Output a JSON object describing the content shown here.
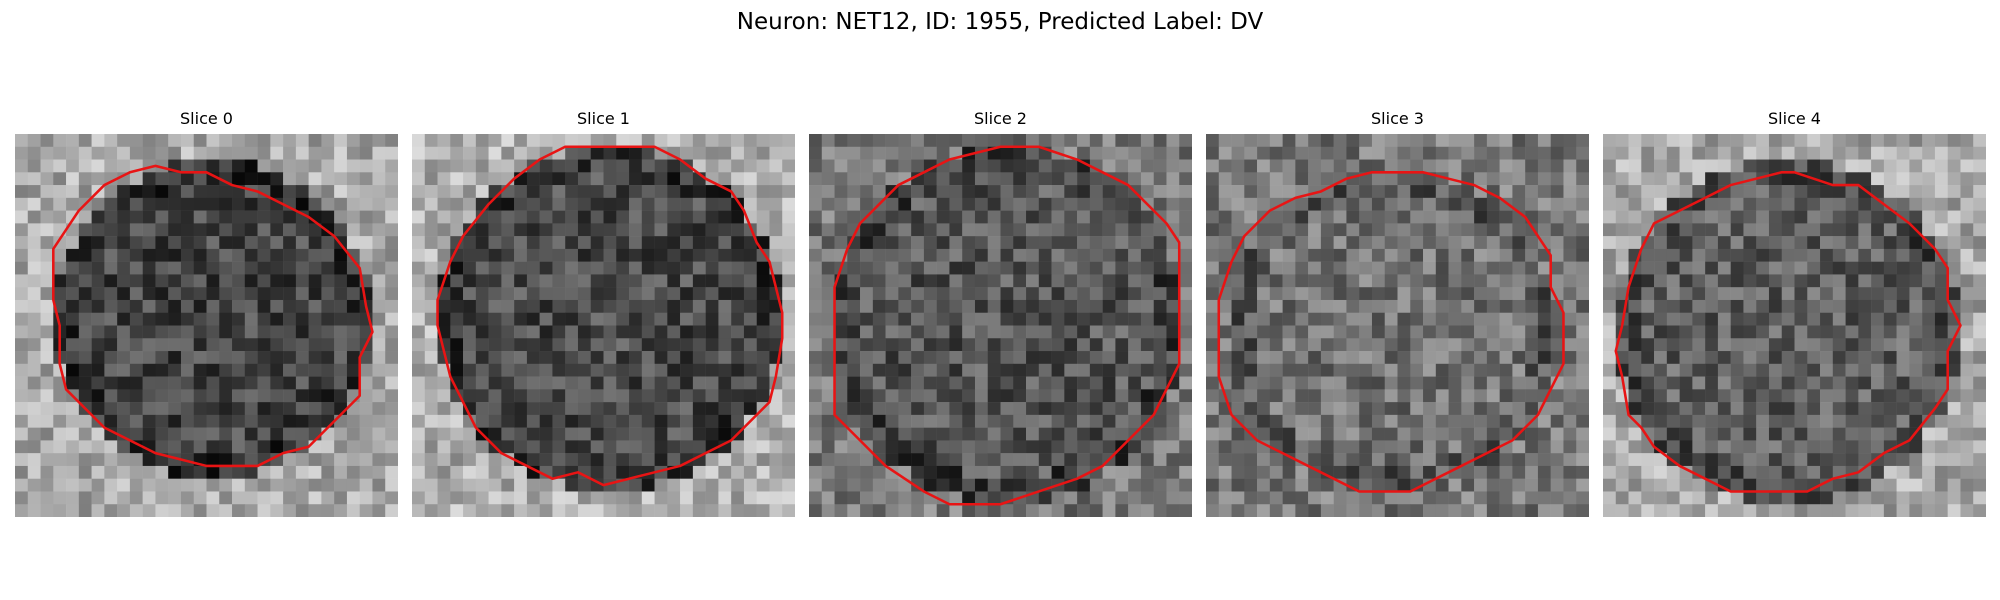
{
  "figure": {
    "title": "Neuron: NET12, ID: 1955, Predicted Label: DV"
  },
  "panels": [
    {
      "title": "Slice 0",
      "contour_color": "#e81414"
    },
    {
      "title": "Slice 1",
      "contour_color": "#e81414"
    },
    {
      "title": "Slice 2",
      "contour_color": "#e81414"
    },
    {
      "title": "Slice 3",
      "contour_color": "#e81414"
    },
    {
      "title": "Slice 4",
      "contour_color": "#e81414"
    }
  ]
}
